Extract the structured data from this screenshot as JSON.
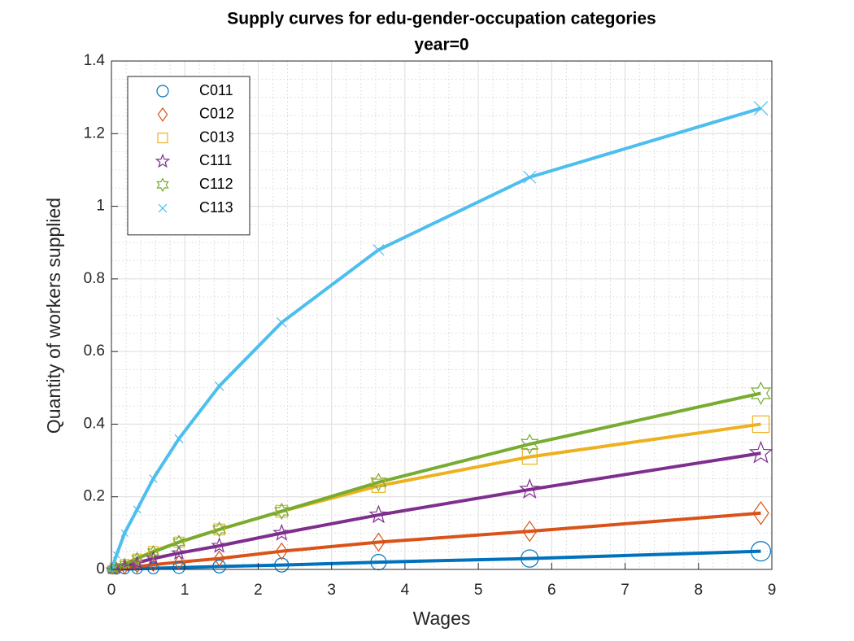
{
  "chart_data": {
    "type": "line",
    "title": "Supply curves for edu-gender-occupation categories",
    "subtitle": "year=0",
    "x_label": "Wages",
    "y_label": "Quantity of workers supplied",
    "x": [
      0,
      0.02,
      0.07,
      0.18,
      0.35,
      0.57,
      0.92,
      1.47,
      2.32,
      3.64,
      5.7,
      8.85
    ],
    "series": [
      {
        "name": "C011",
        "color": "#0072BD",
        "marker": "circle",
        "values": [
          0,
          0,
          0,
          0.001,
          0.002,
          0.003,
          0.005,
          0.008,
          0.012,
          0.02,
          0.03,
          0.05
        ]
      },
      {
        "name": "C012",
        "color": "#D95319",
        "marker": "diamond",
        "values": [
          0,
          0.001,
          0.002,
          0.004,
          0.008,
          0.013,
          0.02,
          0.03,
          0.05,
          0.075,
          0.105,
          0.155
        ]
      },
      {
        "name": "C013",
        "color": "#EDB120",
        "marker": "square",
        "values": [
          0,
          0.002,
          0.006,
          0.016,
          0.03,
          0.05,
          0.075,
          0.11,
          0.16,
          0.23,
          0.31,
          0.4
        ]
      },
      {
        "name": "C111",
        "color": "#7E2F8E",
        "marker": "pentagram",
        "values": [
          0,
          0.001,
          0.004,
          0.01,
          0.018,
          0.03,
          0.045,
          0.065,
          0.1,
          0.15,
          0.22,
          0.32
        ]
      },
      {
        "name": "C112",
        "color": "#77AC30",
        "marker": "hexagram",
        "values": [
          0,
          0.002,
          0.006,
          0.015,
          0.03,
          0.048,
          0.075,
          0.11,
          0.16,
          0.24,
          0.345,
          0.485
        ]
      },
      {
        "name": "C113",
        "color": "#4DBEEE",
        "marker": "x",
        "values": [
          0,
          0.01,
          0.04,
          0.1,
          0.165,
          0.25,
          0.36,
          0.505,
          0.68,
          0.88,
          1.08,
          1.27
        ]
      }
    ],
    "xlim": [
      0,
      9
    ],
    "xticks": [
      0,
      1,
      2,
      3,
      4,
      5,
      6,
      7,
      8,
      9
    ],
    "ylim": [
      0,
      1.4
    ],
    "yticks": [
      0,
      0.2,
      0.4,
      0.6,
      0.8,
      1,
      1.2,
      1.4
    ],
    "grid": true,
    "minor_grid": true,
    "legend": "northwest"
  }
}
